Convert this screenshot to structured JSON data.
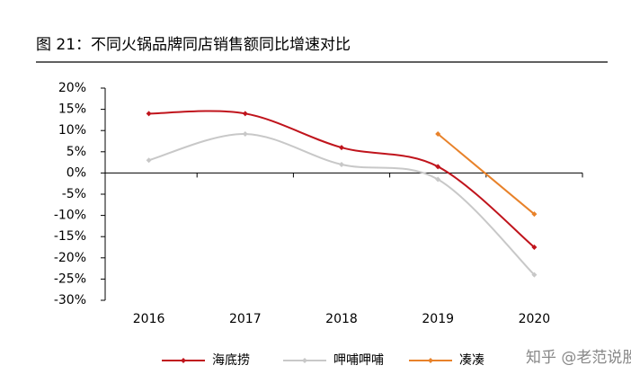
{
  "chart_data": {
    "type": "line",
    "title": "图 21：不同火锅品牌同店销售额同比增速对比",
    "watermark": "知乎 @老范说股",
    "categories": [
      "2016",
      "2017",
      "2018",
      "2019",
      "2020"
    ],
    "series": [
      {
        "name": "海底捞",
        "color": "#c0141c",
        "values": [
          14,
          14,
          6,
          1.5,
          -17.5
        ]
      },
      {
        "name": "呷哺呷哺",
        "color": "#c8c8c8",
        "values": [
          3,
          9.2,
          2,
          -1.5,
          -24
        ]
      },
      {
        "name": "凑凑",
        "color": "#e8822a",
        "values": [
          null,
          null,
          null,
          9.2,
          -9.7
        ]
      }
    ],
    "ylim": [
      -30,
      20
    ],
    "yticks": [
      {
        "value": -30,
        "label": "-30%"
      },
      {
        "value": -25,
        "label": "-25%"
      },
      {
        "value": -20,
        "label": "-20%"
      },
      {
        "value": -15,
        "label": "-15%"
      },
      {
        "value": -10,
        "label": "-10%"
      },
      {
        "value": -5,
        "label": "-5%"
      },
      {
        "value": 0,
        "label": "0%"
      },
      {
        "value": 5,
        "label": "5%"
      },
      {
        "value": 10,
        "label": "10%"
      },
      {
        "value": 15,
        "label": "15%"
      },
      {
        "value": 20,
        "label": "20%"
      }
    ],
    "grid": false,
    "legend": "bottom"
  }
}
